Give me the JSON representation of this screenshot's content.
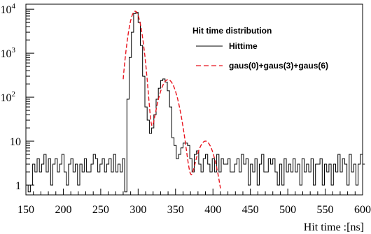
{
  "chart_data": {
    "type": "line",
    "xlabel": "Hit time :[ns]",
    "xlim": [
      150,
      600
    ],
    "ylim": [
      0.6,
      13000
    ],
    "y_scale": "log",
    "grid": false,
    "legend_placement": "top-right",
    "x_ticks": [
      150,
      200,
      250,
      300,
      350,
      400,
      450,
      500,
      550,
      600
    ],
    "y_ticks": [
      {
        "value": 1,
        "label": "1"
      },
      {
        "value": 10,
        "label": "10"
      },
      {
        "value": 100,
        "label": "10",
        "exp": "2"
      },
      {
        "value": 1000,
        "label": "10",
        "exp": "3"
      },
      {
        "value": 10000,
        "label": "10",
        "exp": "4"
      }
    ],
    "legend": {
      "title": "Hit time distribution",
      "entries": [
        "Hittime",
        "gaus(0)+gaus(3)+gaus(6)"
      ]
    },
    "series": [
      {
        "name": "Hittime",
        "style": "histogram",
        "color": "#000000",
        "bin_width": 3,
        "x_start": 150,
        "values": [
          1,
          0.7,
          1,
          3,
          2,
          4,
          2,
          3,
          5,
          2,
          4,
          1,
          3,
          4,
          2,
          3,
          5,
          2,
          1,
          3,
          4,
          2,
          3,
          1,
          3,
          2,
          4,
          2,
          2,
          3,
          5,
          4,
          2,
          3,
          4,
          2,
          3,
          4,
          2,
          5,
          2,
          3,
          2,
          4,
          0.7,
          90,
          800,
          3000,
          8000,
          8500,
          5000,
          1500,
          300,
          60,
          30,
          15,
          20,
          40,
          90,
          160,
          240,
          260,
          220,
          140,
          60,
          12,
          8,
          4,
          5,
          7,
          9,
          9,
          8,
          4,
          2,
          5,
          6,
          3,
          2,
          4,
          5,
          3,
          2,
          4,
          2,
          5,
          2,
          4,
          3,
          3,
          4,
          2,
          2,
          3,
          4,
          2,
          5,
          3,
          4,
          1,
          3,
          2,
          4,
          1,
          3,
          5,
          2,
          2,
          4,
          3,
          4,
          2,
          1,
          3,
          1,
          4,
          2,
          3,
          2,
          4,
          2,
          3,
          1,
          4,
          2,
          3,
          2,
          4,
          1,
          3,
          3,
          4,
          1,
          3,
          2,
          3,
          1,
          3,
          2,
          5,
          2,
          4,
          3,
          1,
          5,
          2,
          3,
          1,
          3,
          5,
          3
        ]
      },
      {
        "name": "gaus(0)+gaus(3)+gaus(6)",
        "style": "dashed-line",
        "color": "#e8141e",
        "x_range": [
          280,
          410
        ],
        "peaks": [
          {
            "mean": 296,
            "amp": 9000,
            "sigma": 6
          },
          {
            "mean": 340,
            "amp": 250,
            "sigma": 9
          },
          {
            "mean": 390,
            "amp": 10,
            "sigma": 9
          }
        ]
      }
    ]
  }
}
